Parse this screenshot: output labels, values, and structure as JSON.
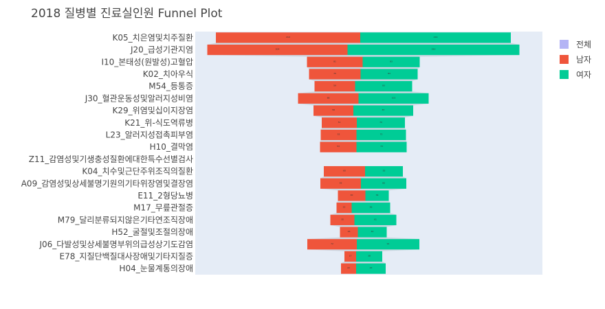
{
  "chart_data": {
    "type": "funnel",
    "title": "2018 질병별 진료실인원 Funnel Plot",
    "categories": [
      "K05_치은염및치주질환",
      "J20_급성기관지염",
      "I10_본태성(원발성)고혈압",
      "K02_치아우식",
      "M54_등통증",
      "J30_혈관운동성및알러지성비염",
      "K29_위염및십이지장염",
      "K21_위-식도역류병",
      "L23_알러지성접촉피부염",
      "H10_결막염",
      "Z11_감염성및기생충성질환에대한특수선별검사",
      "K04_치수및근단주위조직의질환",
      "A09_감염성및상세불명기원의기타위장염및결장염",
      "E11_2형당뇨병",
      "M17_무릎관절증",
      "M79_달리분류되지않은기타연조직장애",
      "H52_굴절및조절의장애",
      "J06_다발성및상세불명부위의급성상기도감염",
      "E78_지질단백질대사장애및기타지질증",
      "H04_눈물계통의장애"
    ],
    "series": [
      {
        "name": "전체",
        "values": [
          0,
          0,
          0,
          0,
          0,
          0,
          0,
          0,
          0,
          0,
          0,
          0,
          0,
          0,
          0,
          0,
          0,
          0,
          0,
          0
        ]
      },
      {
        "name": "남자",
        "values": [
          210,
          204,
          81,
          75,
          59,
          88,
          58,
          51,
          52,
          53,
          0,
          60,
          59,
          40,
          22,
          35,
          26,
          72,
          17,
          22
        ]
      },
      {
        "name": "여자",
        "values": [
          219,
          250,
          83,
          83,
          83,
          102,
          87,
          70,
          72,
          73,
          0,
          55,
          66,
          34,
          56,
          61,
          42,
          91,
          38,
          43
        ]
      }
    ],
    "colors": [
      "#b4b4f5",
      "#ef553b",
      "#00cc96"
    ],
    "legend_position": "top-right",
    "grid": false,
    "plot_background": "#e5ecf6"
  }
}
